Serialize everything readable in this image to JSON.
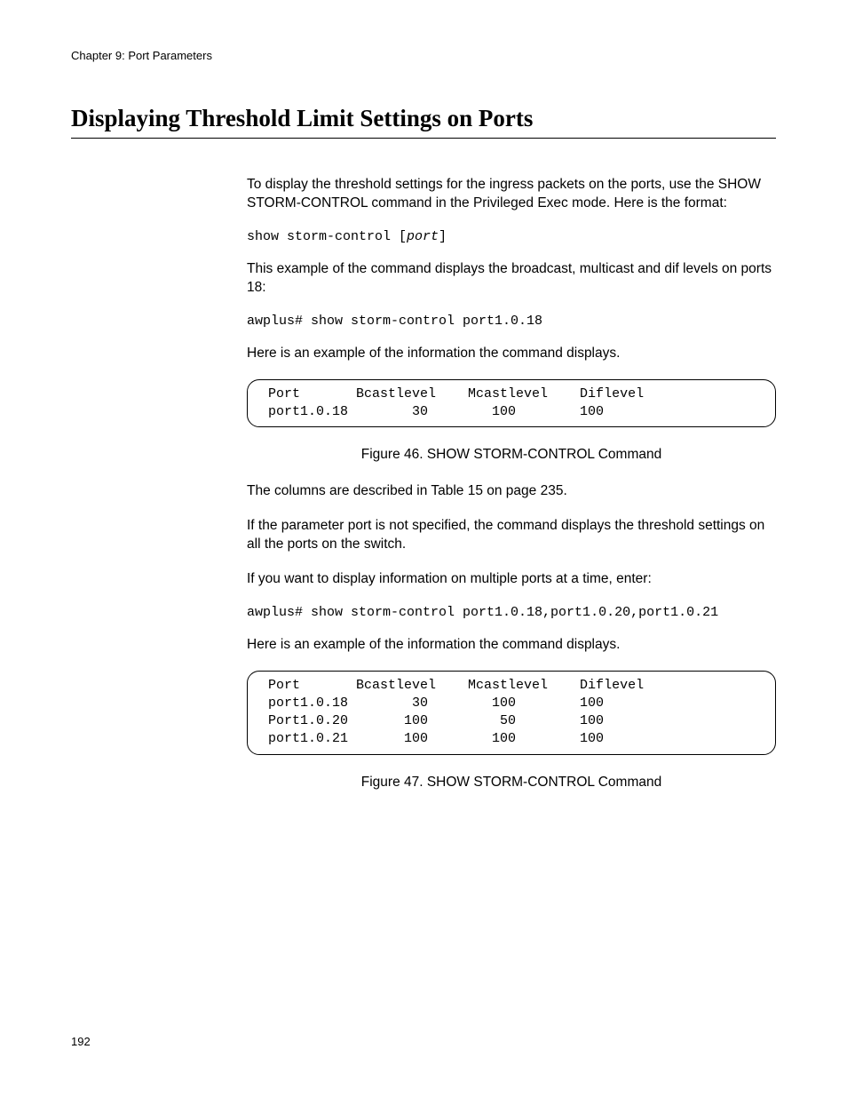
{
  "chapter_header": "Chapter 9: Port Parameters",
  "section_title": "Displaying Threshold Limit Settings on Ports",
  "para_intro": "To display the threshold settings for the ingress packets on the ports, use the SHOW STORM-CONTROL command in the Privileged Exec mode. Here is the format:",
  "syntax_prefix": "show storm-control [",
  "syntax_param": "port",
  "syntax_suffix": "]",
  "para_example1_intro": "This example of the command displays the broadcast, multicast and dif levels on ports 18:",
  "cmd_example1": "awplus# show storm-control port1.0.18",
  "para_example1_output": "Here is an example of the information the command displays.",
  "output_box1": " Port       Bcastlevel    Mcastlevel    Diflevel\n port1.0.18        30        100        100",
  "figure46_caption": "Figure 46. SHOW STORM-CONTROL Command",
  "para_columns": "The columns are described in Table 15 on page 235.",
  "para_unspecified": "If the parameter port is not specified, the command displays the threshold settings on all the ports on the switch.",
  "para_multiple": "If you want to display information on multiple ports at a time, enter:",
  "cmd_example2": "awplus# show storm-control port1.0.18,port1.0.20,port1.0.21",
  "para_example2_output": "Here is an example of the information the command displays.",
  "output_box2": " Port       Bcastlevel    Mcastlevel    Diflevel\n port1.0.18        30        100        100\n Port1.0.20       100         50        100\n port1.0.21       100        100        100",
  "figure47_caption": "Figure 47. SHOW STORM-CONTROL Command",
  "page_number": "192"
}
